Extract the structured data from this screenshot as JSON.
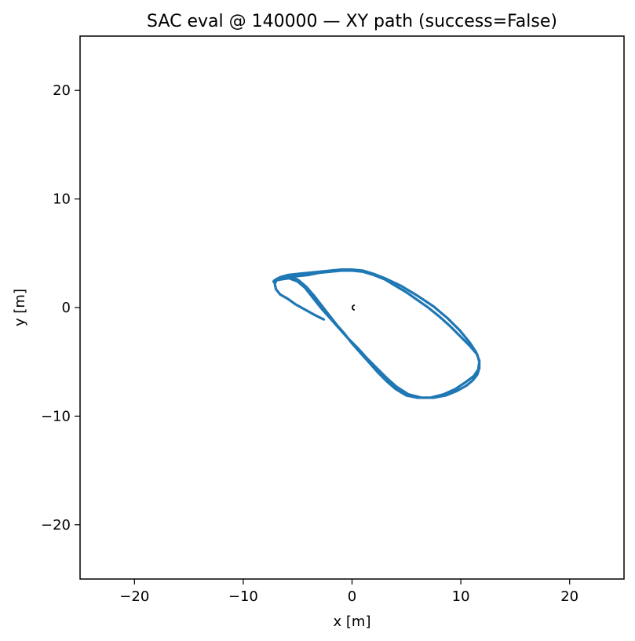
{
  "chart_data": {
    "type": "line",
    "title": "SAC eval @ 140000 — XY path (success=False)",
    "xlabel": "x [m]",
    "ylabel": "y [m]",
    "xlim": [
      -25,
      25
    ],
    "ylim": [
      -25,
      25
    ],
    "xticks": [
      -20,
      -10,
      0,
      10,
      20
    ],
    "yticks": [
      -20,
      -10,
      0,
      10,
      20
    ],
    "xtick_labels": [
      "−20",
      "−10",
      "0",
      "10",
      "20"
    ],
    "ytick_labels": [
      "−20",
      "−10",
      "0",
      "10",
      "20"
    ],
    "grid": false,
    "line_color": "#1f77b4",
    "marker_color": "#000000",
    "series": [
      {
        "x": [
          -2.6,
          -3.4,
          -4.3,
          -5.2,
          -5.9,
          -6.6,
          -7.0,
          -7.1,
          -7.0,
          -6.6,
          -5.9,
          -5.0,
          -4.0,
          -3.0,
          -2.0,
          -1.0,
          0.0,
          1.0,
          2.0,
          3.0,
          4.5,
          6.0,
          7.5,
          8.8,
          9.9,
          10.8,
          11.4,
          11.7,
          11.7,
          11.5,
          11.1,
          10.5,
          9.6,
          8.6,
          7.5,
          6.4,
          5.2,
          4.1,
          3.2,
          2.3,
          1.4,
          0.5,
          -0.4,
          -1.2,
          -2.0,
          -2.8,
          -3.6,
          -4.3,
          -5.0,
          -5.8,
          -6.5,
          -7.0,
          -7.2,
          -7.1,
          -6.0,
          -5.0,
          -4.0,
          -3.0,
          -2.0,
          -1.0,
          0.0,
          1.0,
          2.0,
          3.0,
          4.0,
          5.0,
          6.0,
          7.0,
          8.0,
          9.0,
          10.0,
          10.8,
          11.5,
          11.7,
          11.6,
          11.2,
          10.4,
          9.5,
          8.4,
          7.2,
          6.0,
          5.0,
          4.0,
          3.2,
          2.4,
          1.6,
          0.8,
          0.0,
          -0.7,
          -1.4,
          -2.1,
          -2.8,
          -3.5,
          -4.2,
          -4.9,
          -5.6,
          -6.2,
          -6.8,
          -7.1
        ],
        "y": [
          -1.1,
          -0.7,
          -0.2,
          0.3,
          0.8,
          1.2,
          1.7,
          2.2,
          2.6,
          2.8,
          3.0,
          3.1,
          3.2,
          3.3,
          3.4,
          3.5,
          3.5,
          3.4,
          3.1,
          2.7,
          2.0,
          1.1,
          0.1,
          -1.0,
          -2.1,
          -3.2,
          -4.1,
          -4.9,
          -5.6,
          -6.2,
          -6.7,
          -7.2,
          -7.7,
          -8.1,
          -8.3,
          -8.3,
          -8.0,
          -7.3,
          -6.5,
          -5.6,
          -4.7,
          -3.7,
          -2.8,
          -1.9,
          -1.0,
          -0.1,
          0.9,
          1.8,
          2.4,
          2.7,
          2.6,
          2.5,
          2.4,
          2.5,
          2.7,
          2.9,
          3.0,
          3.2,
          3.3,
          3.4,
          3.4,
          3.3,
          3.0,
          2.6,
          2.0,
          1.4,
          0.7,
          0.0,
          -0.8,
          -1.7,
          -2.7,
          -3.5,
          -4.3,
          -5.0,
          -5.7,
          -6.3,
          -6.9,
          -7.5,
          -8.0,
          -8.3,
          -8.3,
          -8.1,
          -7.5,
          -6.8,
          -6.0,
          -5.1,
          -4.2,
          -3.3,
          -2.4,
          -1.6,
          -0.7,
          0.2,
          1.1,
          1.9,
          2.5,
          2.9,
          2.8,
          2.6,
          2.4
        ]
      }
    ],
    "markers": [
      {
        "type": "arc",
        "x": 0.1,
        "y": 0.0
      }
    ]
  }
}
